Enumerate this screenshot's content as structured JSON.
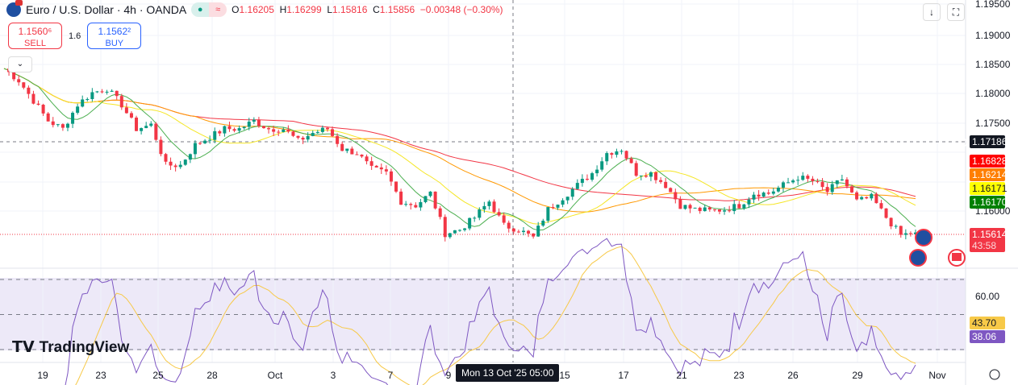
{
  "header": {
    "symbol": "Euro / U.S. Dollar · 4h · OANDA",
    "open_label": "O",
    "open": "1.16205",
    "high_label": "H",
    "high": "1.16299",
    "low_label": "L",
    "low": "1.15816",
    "close_label": "C",
    "close": "1.15856",
    "change": "−0.00348 (−0.30%)",
    "market_status_icon": "dot-icon",
    "indicator_icon": "wave-icon"
  },
  "trade": {
    "sell_price": "1.1560⁶",
    "sell_label": "SELL",
    "spread": "1.6",
    "buy_price": "1.1562²",
    "buy_label": "BUY"
  },
  "toolbar": {
    "collapse_icon": "chevron-down-icon",
    "download_icon": "arrow-down-icon",
    "fullscreen_icon": "fullscreen-icon"
  },
  "price_axis": {
    "ticks": [
      "1.19500",
      "1.19000",
      "1.18500",
      "1.18000",
      "1.17500",
      "1.16000"
    ],
    "tags": [
      {
        "value": "1.17186",
        "color": "#131722"
      },
      {
        "value": "1.16828",
        "color": "#ff0000"
      },
      {
        "value": "1.16214",
        "color": "#ff7f00"
      },
      {
        "value": "1.16171",
        "color": "#ffff00"
      },
      {
        "value": "1.16170",
        "color": "#008000"
      }
    ],
    "last_price": "1.15614",
    "countdown": "43:58",
    "last_color": "#f23645"
  },
  "rsi_axis": {
    "tick": "60.00",
    "ma_value": "43.70",
    "rsi_value": "38.06",
    "ma_color": "#f7c948",
    "rsi_color": "#7e57c2"
  },
  "time_axis": {
    "labels": [
      "19",
      "23",
      "25",
      "28",
      "Oct",
      "3",
      "7",
      "9",
      "15",
      "17",
      "21",
      "23",
      "26",
      "29",
      "Nov"
    ],
    "crosshair": "Mon 13 Oct '25   05:00"
  },
  "logo": "TradingView",
  "chart_data": {
    "type": "candlestick",
    "ylim": [
      1.155,
      1.195
    ],
    "rsi_levels": [
      70,
      50,
      30
    ],
    "colors": {
      "up": "#089981",
      "down": "#f23645",
      "ma_fast": "#4caf50",
      "ma_mid": "#f5e625",
      "ma_slow": "#ff9800",
      "ma_long": "#f23645"
    },
    "close_path": [
      1.18404,
      1.18199,
      1.17856,
      1.17514,
      1.17377,
      1.17788,
      1.17993,
      1.18062,
      1.17788,
      1.17377,
      1.17445,
      1.1676,
      1.1676,
      1.17103,
      1.1724,
      1.17377,
      1.17377,
      1.17514,
      1.17377,
      1.17377,
      1.17171,
      1.17308,
      1.17377,
      1.17034,
      1.16966,
      1.16692,
      1.16623,
      1.16144,
      1.16075,
      1.16281,
      1.15596,
      1.15664,
      1.1587,
      1.16144,
      1.15733,
      1.15664,
      1.15527,
      1.16007,
      1.16212,
      1.16418,
      1.16623,
      1.16966,
      1.17034,
      1.16623,
      1.16623,
      1.16418,
      1.16075,
      1.16007,
      1.1598,
      1.16007,
      1.16075,
      1.16281,
      1.16281,
      1.16418,
      1.16555,
      1.16486,
      1.16308,
      1.16527,
      1.16144,
      1.16212,
      1.1587,
      1.15568,
      1.15614
    ]
  }
}
